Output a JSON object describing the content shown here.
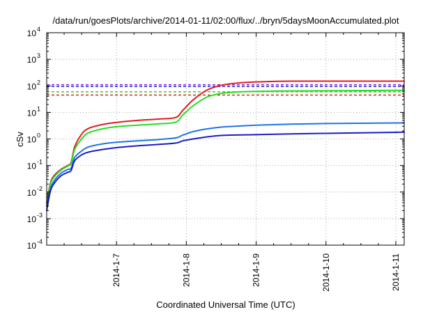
{
  "chart_data": {
    "type": "line",
    "title": "/data/run/goesPlots/archive/2014-01-11/02:00/flux/../bryn/5daysMoonAccumulated.plot",
    "xlabel": "Coordinated Universal Time (UTC)",
    "ylabel": "cSv",
    "x_unit": "days (2014-01)",
    "xlim": [
      6.0,
      11.12
    ],
    "ylim": [
      0.0001,
      10000
    ],
    "yscale": "log",
    "grid": true,
    "legend": "none",
    "x_ticks": [
      {
        "value": 7,
        "label": "2014-1-7"
      },
      {
        "value": 8,
        "label": "2014-1-8"
      },
      {
        "value": 9,
        "label": "2014-1-9"
      },
      {
        "value": 10,
        "label": "2014-1-10"
      },
      {
        "value": 11,
        "label": "2014-1-11"
      }
    ],
    "y_ticks": [
      {
        "exp": "4",
        "value": 10000
      },
      {
        "exp": "3",
        "value": 1000
      },
      {
        "exp": "2",
        "value": 100
      },
      {
        "exp": "1",
        "value": 10
      },
      {
        "exp": "0",
        "value": 1
      },
      {
        "exp": "-1",
        "value": 0.1
      },
      {
        "exp": "-2",
        "value": 0.01
      },
      {
        "exp": "-3",
        "value": 0.001
      },
      {
        "exp": "-4",
        "value": 0.0001
      }
    ],
    "y_tick_base": "10",
    "thresholds": [
      {
        "color": "#8a2be2",
        "value": 110
      },
      {
        "color": "#1e1ee6",
        "value": 95
      },
      {
        "color": "#22dd22",
        "value": 60
      },
      {
        "color": "#e11b1b",
        "value": 45
      }
    ],
    "series": [
      {
        "color": "#e11b1b",
        "x": [
          6.0,
          6.05,
          6.1,
          6.2,
          6.3,
          6.35,
          6.4,
          6.5,
          6.6,
          6.8,
          7.0,
          7.3,
          7.6,
          7.85,
          7.95,
          8.1,
          8.3,
          8.5,
          8.7,
          9.0,
          9.5,
          10.0,
          10.5,
          11.12
        ],
        "y": [
          0.004,
          0.02,
          0.04,
          0.07,
          0.1,
          0.13,
          0.5,
          1.5,
          2.5,
          3.5,
          4.2,
          5.0,
          5.6,
          6.5,
          12,
          30,
          70,
          105,
          125,
          140,
          150,
          150,
          150,
          150
        ]
      },
      {
        "color": "#22dd22",
        "x": [
          6.0,
          6.05,
          6.1,
          6.2,
          6.3,
          6.35,
          6.4,
          6.5,
          6.6,
          6.8,
          7.0,
          7.3,
          7.6,
          7.85,
          7.95,
          8.1,
          8.3,
          8.5,
          8.7,
          9.0,
          9.5,
          10.0,
          10.5,
          11.12
        ],
        "y": [
          0.003,
          0.018,
          0.035,
          0.065,
          0.095,
          0.12,
          0.4,
          1.0,
          1.7,
          2.4,
          2.9,
          3.3,
          3.7,
          4.3,
          8,
          18,
          38,
          52,
          58,
          62,
          64,
          65,
          66,
          68
        ]
      },
      {
        "color": "#1e73e6",
        "x": [
          6.0,
          6.05,
          6.1,
          6.2,
          6.3,
          6.35,
          6.4,
          6.5,
          6.6,
          6.8,
          7.0,
          7.3,
          7.6,
          7.85,
          7.95,
          8.1,
          8.3,
          8.5,
          8.7,
          9.0,
          9.5,
          10.0,
          10.5,
          11.12
        ],
        "y": [
          0.003,
          0.012,
          0.025,
          0.05,
          0.07,
          0.08,
          0.2,
          0.35,
          0.5,
          0.65,
          0.75,
          0.85,
          0.95,
          1.1,
          1.4,
          1.9,
          2.4,
          2.8,
          3.0,
          3.3,
          3.6,
          3.8,
          3.9,
          4.0
        ]
      },
      {
        "color": "#1a1ac8",
        "x": [
          6.0,
          6.05,
          6.1,
          6.2,
          6.3,
          6.35,
          6.4,
          6.5,
          6.6,
          6.8,
          7.0,
          7.3,
          7.6,
          7.85,
          7.95,
          8.1,
          8.3,
          8.5,
          8.7,
          9.0,
          9.5,
          10.0,
          10.5,
          11.12
        ],
        "y": [
          0.002,
          0.01,
          0.02,
          0.04,
          0.055,
          0.065,
          0.15,
          0.25,
          0.32,
          0.4,
          0.47,
          0.55,
          0.62,
          0.7,
          0.85,
          1.0,
          1.2,
          1.35,
          1.4,
          1.45,
          1.55,
          1.62,
          1.7,
          1.8
        ]
      }
    ]
  }
}
